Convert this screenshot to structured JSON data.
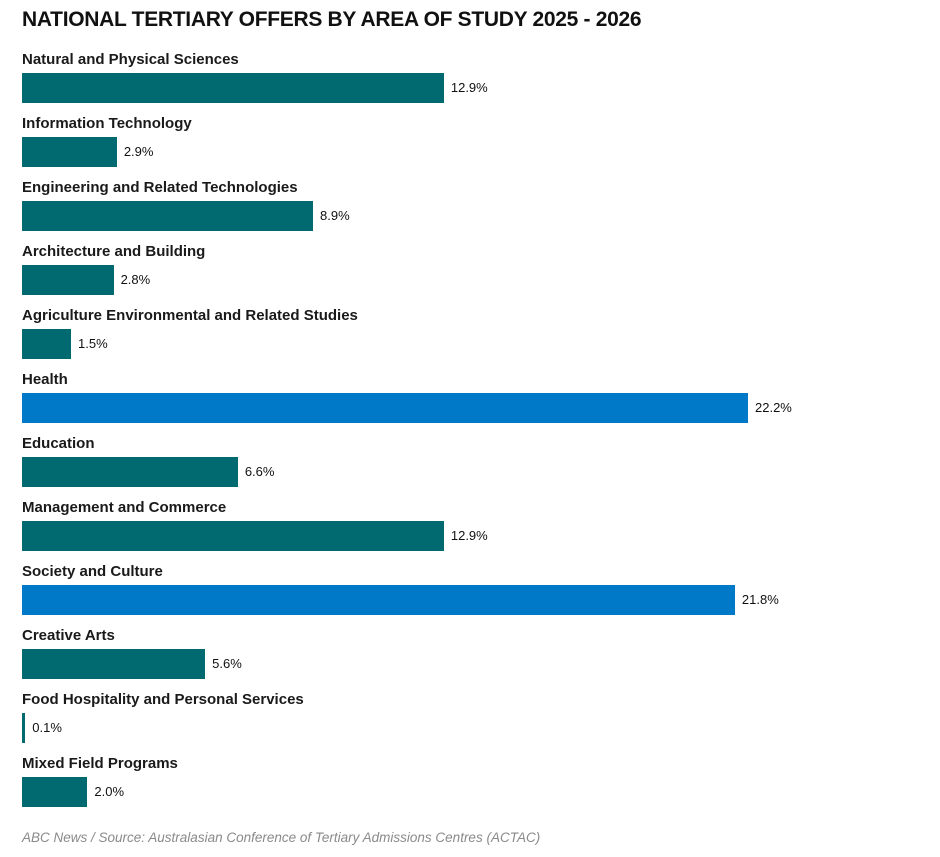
{
  "chart_data": {
    "type": "bar",
    "orientation": "horizontal",
    "title": "NATIONAL TERTIARY OFFERS BY AREA OF STUDY 2025 - 2026",
    "xlabel": "",
    "ylabel": "",
    "xlim": [
      0,
      25
    ],
    "grid": false,
    "unit": "%",
    "categories": [
      "Natural and Physical Sciences",
      "Information Technology",
      "Engineering and Related Technologies",
      "Architecture and Building",
      "Agriculture Environmental and Related Studies",
      "Health",
      "Education",
      "Management and Commerce",
      "Society and Culture",
      "Creative Arts",
      "Food Hospitality and Personal Services",
      "Mixed Field Programs"
    ],
    "values": [
      12.9,
      2.9,
      8.9,
      2.8,
      1.5,
      22.2,
      6.6,
      12.9,
      21.8,
      5.6,
      0.1,
      2.0
    ],
    "value_labels": [
      "12.9%",
      "2.9%",
      "8.9%",
      "2.8%",
      "1.5%",
      "22.2%",
      "6.6%",
      "12.9%",
      "21.8%",
      "5.6%",
      "0.1%",
      "2.0%"
    ],
    "highlighted": [
      false,
      false,
      false,
      false,
      false,
      true,
      false,
      false,
      true,
      false,
      false,
      false
    ],
    "colors": {
      "default": "#016a71",
      "highlight": "#0079c8"
    },
    "source": "ABC News / Source: Australasian Conference of Tertiary Admissions Centres (ACTAC)"
  }
}
